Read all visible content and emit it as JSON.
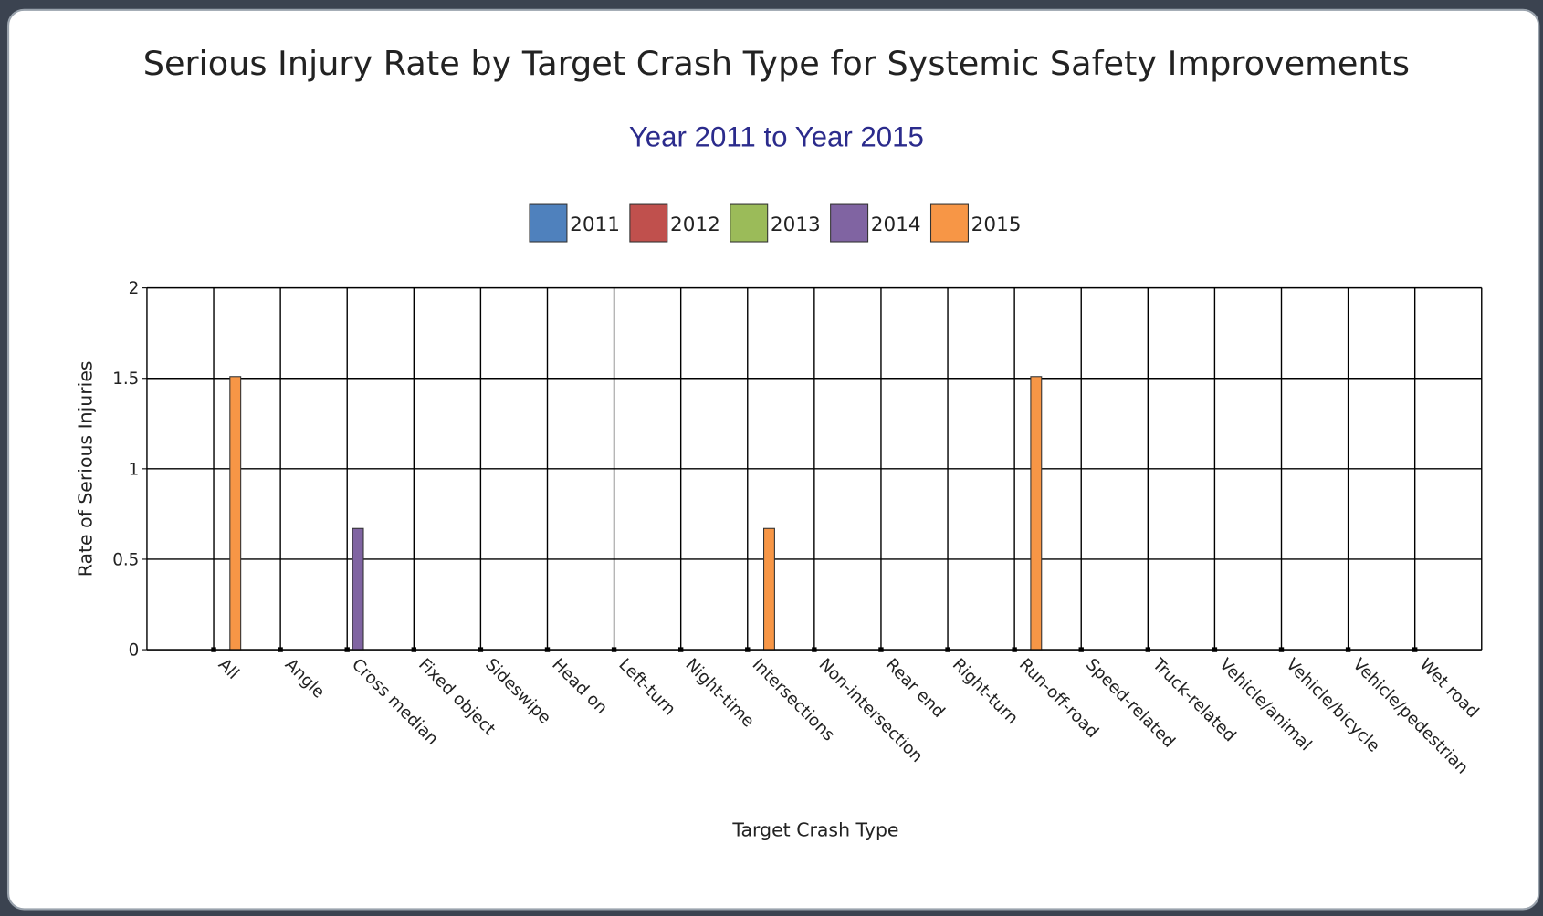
{
  "chart_data": {
    "type": "bar",
    "title": "Serious Injury Rate by Target Crash Type for Systemic Safety Improvements",
    "subtitle": "Year 2011 to Year 2015",
    "x_label": "Target Crash Type",
    "y_label": "Rate of Serious Injuries",
    "categories": [
      "All",
      "Angle",
      "Cross median",
      "Fixed object",
      "Sideswipe",
      "Head on",
      "Left-turn",
      "Night-time",
      "Intersections",
      "Non-intersection",
      "Rear end",
      "Right-turn",
      "Run-off-road",
      "Speed-related",
      "Truck-related",
      "Vehicle/animal",
      "Vehicle/bicycle",
      "Vehicle/pedestrian",
      "Wet road"
    ],
    "series": [
      {
        "name": "2011",
        "color": "#4f81bd",
        "values": [
          0,
          0,
          0,
          0,
          0,
          0,
          0,
          0,
          0,
          0,
          0,
          0,
          0,
          0,
          0,
          0,
          0,
          0,
          0
        ]
      },
      {
        "name": "2012",
        "color": "#c0504d",
        "values": [
          0,
          0,
          0,
          0,
          0,
          0,
          0,
          0,
          0,
          0,
          0,
          0,
          0,
          0,
          0,
          0,
          0,
          0,
          0
        ]
      },
      {
        "name": "2013",
        "color": "#9bbb59",
        "values": [
          0,
          0,
          0,
          0,
          0,
          0,
          0,
          0,
          0,
          0,
          0,
          0,
          0,
          0,
          0,
          0,
          0,
          0,
          0
        ]
      },
      {
        "name": "2014",
        "color": "#8064a2",
        "values": [
          0,
          0,
          0.67,
          0,
          0,
          0,
          0,
          0,
          0,
          0,
          0,
          0,
          0,
          0,
          0,
          0,
          0,
          0,
          0
        ]
      },
      {
        "name": "2015",
        "color": "#f79646",
        "values": [
          1.51,
          0,
          0,
          0,
          0,
          0,
          0,
          0,
          0.67,
          0,
          0,
          0,
          1.51,
          0,
          0,
          0,
          0,
          0,
          0
        ]
      }
    ],
    "ylim": [
      0,
      2
    ],
    "yticks": [
      0,
      0.5,
      1,
      1.5,
      2
    ],
    "grid": true,
    "legend": "top"
  }
}
